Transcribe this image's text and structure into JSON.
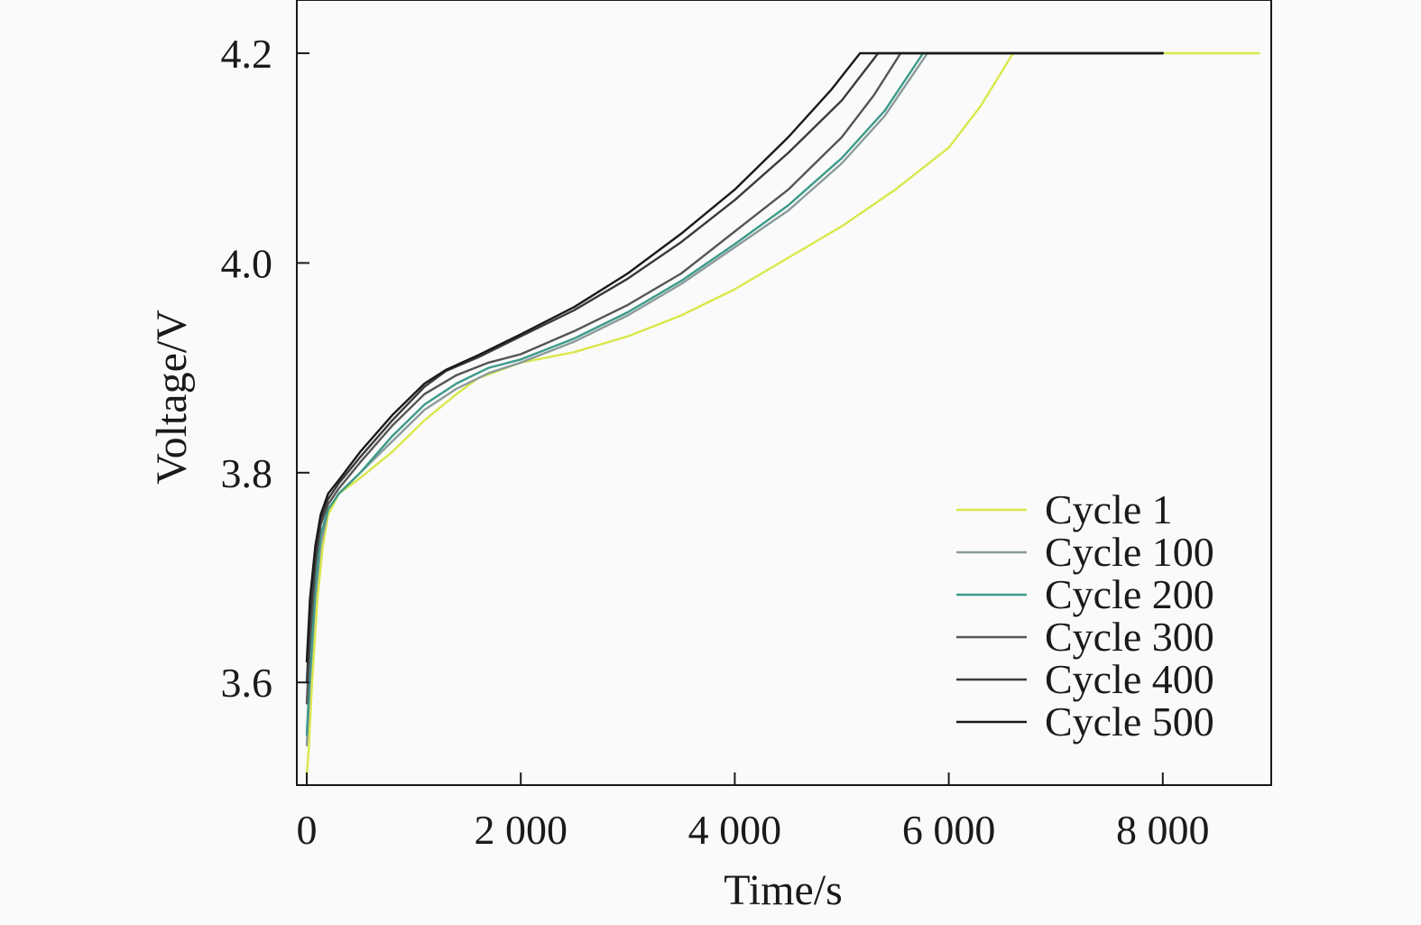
{
  "chart_data": {
    "type": "line",
    "xlabel": "Time/s",
    "ylabel": "Voltage/V",
    "xlim": [
      -100,
      9000
    ],
    "ylim": [
      3.5,
      4.25
    ],
    "xticks": [
      0,
      2000,
      4000,
      6000,
      8000
    ],
    "xtick_labels": [
      "0",
      "2 000",
      "4 000",
      "6 000",
      "8 000"
    ],
    "yticks": [
      3.6,
      3.8,
      4.0,
      4.2
    ],
    "ytick_labels": [
      "3.6",
      "3.8",
      "4.0",
      "4.2"
    ],
    "grid": false,
    "legend_position": "lower-right",
    "series": [
      {
        "name": "Cycle 1",
        "color": "#d9e84a",
        "x": [
          0,
          20,
          50,
          100,
          150,
          200,
          300,
          500,
          800,
          1100,
          1400,
          1600,
          2000,
          2500,
          3000,
          3500,
          4000,
          4500,
          5000,
          5500,
          6000,
          6300,
          6600,
          7000,
          8000,
          8900
        ],
        "y": [
          3.51,
          3.54,
          3.6,
          3.68,
          3.73,
          3.76,
          3.78,
          3.795,
          3.82,
          3.85,
          3.875,
          3.89,
          3.905,
          3.915,
          3.93,
          3.95,
          3.975,
          4.005,
          4.035,
          4.07,
          4.11,
          4.15,
          4.2,
          4.2,
          4.2,
          4.2
        ]
      },
      {
        "name": "Cycle 100",
        "color": "#8a9a9a",
        "x": [
          0,
          30,
          80,
          130,
          200,
          300,
          500,
          800,
          1100,
          1400,
          1700,
          2000,
          2500,
          3000,
          3500,
          4000,
          4500,
          5000,
          5400,
          5800,
          6500,
          8000
        ],
        "y": [
          3.54,
          3.6,
          3.68,
          3.73,
          3.765,
          3.78,
          3.8,
          3.83,
          3.86,
          3.88,
          3.895,
          3.905,
          3.925,
          3.95,
          3.98,
          4.015,
          4.05,
          4.095,
          4.14,
          4.2,
          4.2,
          4.2
        ]
      },
      {
        "name": "Cycle 200",
        "color": "#3c9a8a",
        "x": [
          0,
          30,
          80,
          130,
          200,
          300,
          500,
          800,
          1100,
          1400,
          1700,
          2000,
          2500,
          3000,
          3500,
          4000,
          4500,
          5000,
          5400,
          5760,
          6500,
          8000
        ],
        "y": [
          3.55,
          3.61,
          3.69,
          3.74,
          3.765,
          3.78,
          3.8,
          3.835,
          3.865,
          3.885,
          3.9,
          3.908,
          3.928,
          3.953,
          3.983,
          4.018,
          4.055,
          4.1,
          4.145,
          4.2,
          4.2,
          4.2
        ]
      },
      {
        "name": "Cycle 300",
        "color": "#555555",
        "x": [
          0,
          30,
          80,
          130,
          200,
          300,
          500,
          800,
          1100,
          1400,
          1700,
          2000,
          2500,
          3000,
          3500,
          4000,
          4500,
          5000,
          5300,
          5550,
          6500,
          8000
        ],
        "y": [
          3.58,
          3.64,
          3.71,
          3.75,
          3.77,
          3.785,
          3.81,
          3.845,
          3.875,
          3.893,
          3.905,
          3.913,
          3.935,
          3.96,
          3.99,
          4.03,
          4.07,
          4.12,
          4.16,
          4.2,
          4.2,
          4.2
        ]
      },
      {
        "name": "Cycle 400",
        "color": "#3a3a3a",
        "x": [
          0,
          30,
          80,
          130,
          200,
          300,
          500,
          800,
          1100,
          1300,
          1600,
          2000,
          2500,
          3000,
          3500,
          4000,
          4500,
          5000,
          5340,
          6500,
          8000
        ],
        "y": [
          3.6,
          3.66,
          3.72,
          3.755,
          3.775,
          3.79,
          3.815,
          3.85,
          3.882,
          3.897,
          3.91,
          3.93,
          3.955,
          3.985,
          4.02,
          4.06,
          4.105,
          4.155,
          4.2,
          4.2,
          4.2
        ]
      },
      {
        "name": "Cycle 500",
        "color": "#1a1a1a",
        "x": [
          0,
          30,
          80,
          130,
          200,
          300,
          500,
          800,
          1100,
          1300,
          1600,
          2000,
          2500,
          3000,
          3500,
          4000,
          4500,
          4900,
          5170,
          6500,
          8000
        ],
        "y": [
          3.62,
          3.68,
          3.73,
          3.76,
          3.78,
          3.793,
          3.82,
          3.855,
          3.885,
          3.898,
          3.912,
          3.932,
          3.958,
          3.99,
          4.028,
          4.07,
          4.12,
          4.165,
          4.2,
          4.2,
          4.2
        ]
      }
    ]
  }
}
